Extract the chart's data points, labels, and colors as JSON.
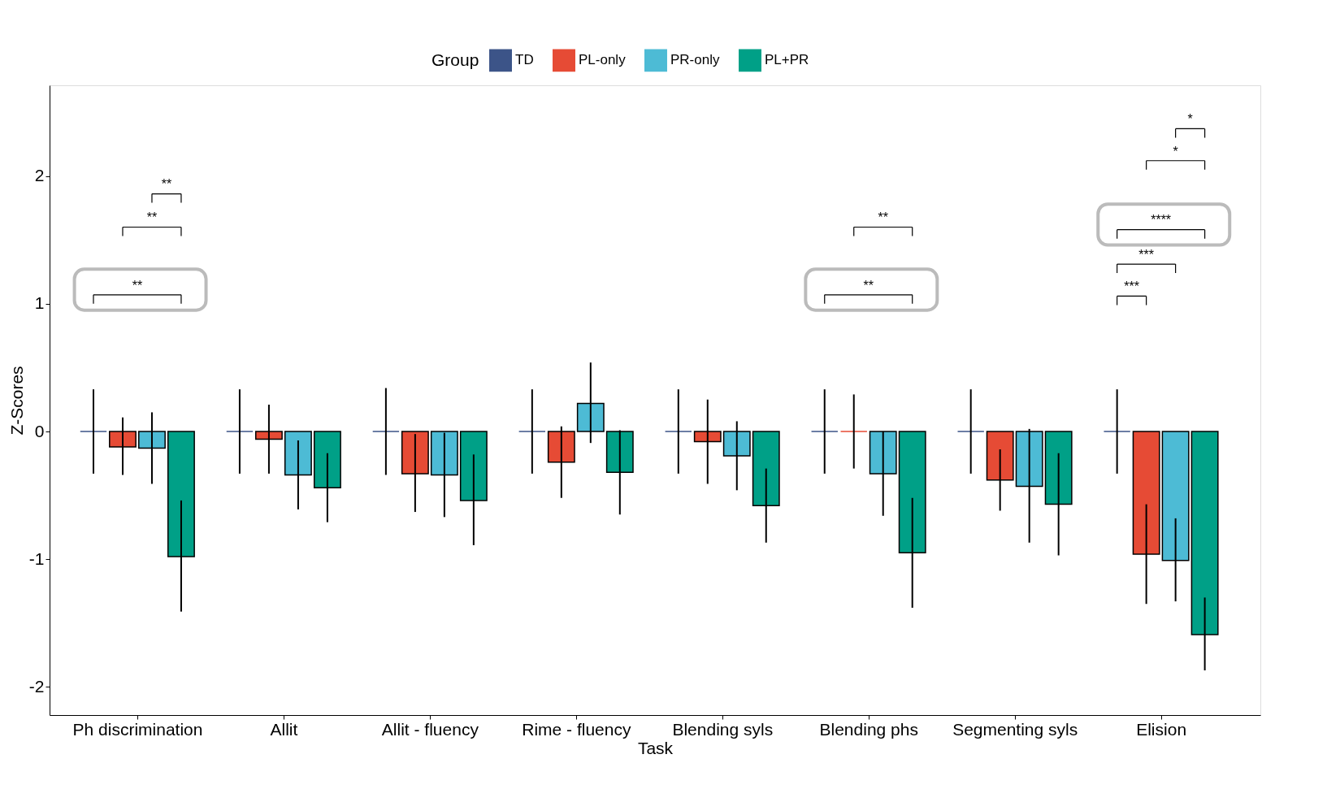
{
  "chart_data": {
    "type": "bar",
    "xlabel": "Task",
    "ylabel": "Z-Scores",
    "legend_title": "Group",
    "legend": "top",
    "grid": false,
    "categories": [
      "Ph discrimination",
      "Allit",
      "Allit - fluency",
      "Rime - fluency",
      "Blending syls",
      "Blending phs",
      "Segmenting syls",
      "Elision"
    ],
    "ylim": [
      -2.22,
      2.71
    ],
    "yticks": [
      {
        "value": -2,
        "label": "-2"
      },
      {
        "value": -1,
        "label": "-1"
      },
      {
        "value": 0,
        "label": "0"
      },
      {
        "value": 1,
        "label": "1"
      },
      {
        "value": 2,
        "label": "2"
      }
    ],
    "series": [
      {
        "name": "TD",
        "color": "#3c5488",
        "values": [
          0,
          0,
          0,
          0,
          0,
          0,
          0,
          0
        ],
        "errors": [
          [
            -0.33,
            0.33
          ],
          [
            -0.33,
            0.33
          ],
          [
            -0.34,
            0.34
          ],
          [
            -0.33,
            0.33
          ],
          [
            -0.33,
            0.33
          ],
          [
            -0.33,
            0.33
          ],
          [
            -0.33,
            0.33
          ],
          [
            -0.33,
            0.33
          ]
        ]
      },
      {
        "name": "PL-only",
        "color": "#e64b35",
        "values": [
          -0.12,
          -0.06,
          -0.33,
          -0.24,
          -0.08,
          0,
          -0.38,
          -0.96
        ],
        "errors": [
          [
            -0.34,
            0.11
          ],
          [
            -0.33,
            0.21
          ],
          [
            -0.63,
            -0.02
          ],
          [
            -0.52,
            0.04
          ],
          [
            -0.41,
            0.25
          ],
          [
            -0.29,
            0.29
          ],
          [
            -0.62,
            -0.14
          ],
          [
            -1.35,
            -0.57
          ]
        ]
      },
      {
        "name": "PR-only",
        "color": "#4dbbd5",
        "values": [
          -0.13,
          -0.34,
          -0.34,
          0.22,
          -0.19,
          -0.33,
          -0.43,
          -1.01
        ],
        "errors": [
          [
            -0.41,
            0.15
          ],
          [
            -0.61,
            -0.07
          ],
          [
            -0.67,
            -0.01
          ],
          [
            -0.09,
            0.54
          ],
          [
            -0.46,
            0.08
          ],
          [
            -0.66,
            0
          ],
          [
            -0.87,
            0.02
          ],
          [
            -1.33,
            -0.68
          ]
        ]
      },
      {
        "name": "PL+PR",
        "color": "#00a087",
        "values": [
          -0.98,
          -0.44,
          -0.54,
          -0.32,
          -0.58,
          -0.95,
          -0.57,
          -1.59
        ],
        "errors": [
          [
            -1.41,
            -0.54
          ],
          [
            -0.71,
            -0.17
          ],
          [
            -0.89,
            -0.18
          ],
          [
            -0.65,
            0.01
          ],
          [
            -0.87,
            -0.29
          ],
          [
            -1.38,
            -0.52
          ],
          [
            -0.97,
            -0.17
          ],
          [
            -1.87,
            -1.3
          ]
        ]
      }
    ],
    "annotations": [
      "**",
      "**",
      "**",
      "**",
      "**",
      "***",
      "***",
      "****",
      "*",
      "*"
    ]
  }
}
